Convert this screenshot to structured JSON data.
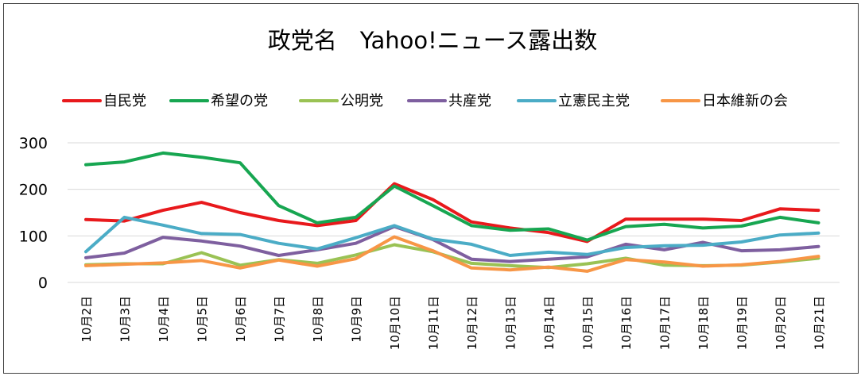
{
  "chart_data": {
    "type": "line",
    "title": "政党名　Yahoo!ニュース露出数",
    "xlabel": "",
    "ylabel": "",
    "ylim": [
      0,
      300
    ],
    "yticks": [
      0,
      100,
      200,
      300
    ],
    "grid": true,
    "legend_position": "top",
    "categories": [
      "10月2日",
      "10月3日",
      "10月4日",
      "10月5日",
      "10月6日",
      "10月7日",
      "10月8日",
      "10月9日",
      "10月10日",
      "10月11日",
      "10月12日",
      "10月13日",
      "10月14日",
      "10月15日",
      "10月16日",
      "10月17日",
      "10月18日",
      "10月19日",
      "10月20日",
      "10月21日"
    ],
    "series": [
      {
        "name": "自民党",
        "color": "#e8191c",
        "values": [
          135,
          132,
          155,
          172,
          150,
          133,
          122,
          133,
          212,
          178,
          130,
          117,
          107,
          88,
          136,
          136,
          136,
          133,
          158,
          155
        ]
      },
      {
        "name": "希望の党",
        "color": "#17a651",
        "values": [
          253,
          259,
          278,
          269,
          257,
          165,
          128,
          140,
          207,
          165,
          122,
          112,
          115,
          91,
          120,
          125,
          117,
          121,
          140,
          128
        ]
      },
      {
        "name": "公明党",
        "color": "#9ac254",
        "values": [
          38,
          40,
          40,
          64,
          37,
          49,
          41,
          59,
          81,
          66,
          41,
          36,
          32,
          40,
          52,
          37,
          36,
          37,
          44,
          52
        ]
      },
      {
        "name": "共産党",
        "color": "#7e5f9f",
        "values": [
          53,
          63,
          97,
          89,
          78,
          58,
          70,
          84,
          120,
          92,
          50,
          45,
          50,
          55,
          82,
          70,
          86,
          68,
          70,
          77
        ]
      },
      {
        "name": "立憲民主党",
        "color": "#4bacc6",
        "values": [
          66,
          140,
          123,
          105,
          103,
          84,
          72,
          96,
          122,
          93,
          82,
          58,
          65,
          60,
          75,
          79,
          80,
          87,
          102,
          106
        ]
      },
      {
        "name": "日本維新の会",
        "color": "#f79646",
        "values": [
          36,
          39,
          42,
          47,
          31,
          48,
          35,
          51,
          98,
          68,
          31,
          27,
          33,
          24,
          49,
          44,
          35,
          38,
          45,
          56
        ]
      }
    ]
  }
}
